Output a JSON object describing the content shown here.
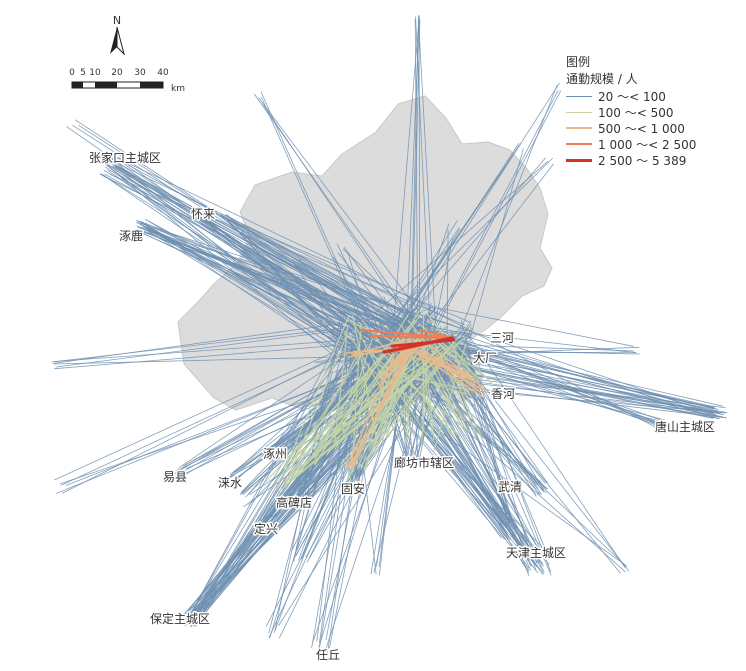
{
  "north": {
    "label": "N"
  },
  "scale": {
    "ticks": [
      "0",
      "5",
      "10",
      "20",
      "30",
      "40"
    ],
    "unit": "km"
  },
  "legend": {
    "title": "图例",
    "subtitle": "通勤规模 / 人",
    "classes": [
      {
        "label": "20 ～< 100",
        "color": "#6f8fb0"
      },
      {
        "label": "100 ～< 500",
        "color": "#c3d3a6"
      },
      {
        "label": "500 ～< 1 000",
        "color": "#e7b98d"
      },
      {
        "label": "1 000 ～< 2 500",
        "color": "#ec7f5a"
      },
      {
        "label": "2 500 ～ 5 389",
        "color": "#d3322a"
      }
    ]
  },
  "places": {
    "zhangjiakou": "张家口主城区",
    "huailai": "怀来",
    "zhuolu": "涿鹿",
    "sanhe": "三河",
    "dachang": "大厂",
    "xianghe": "香河",
    "tangshan": "唐山主城区",
    "yixian": "易县",
    "laishui": "涞水",
    "zhuozhou": "涿州",
    "gaobeidian": "高碑店",
    "gu_an": "固安",
    "langfang": "廊坊市辖区",
    "wuqing": "武清",
    "tianjin": "天津主城区",
    "dingxing": "定兴",
    "baoding": "保定主城区",
    "renqiu": "任丘"
  }
}
